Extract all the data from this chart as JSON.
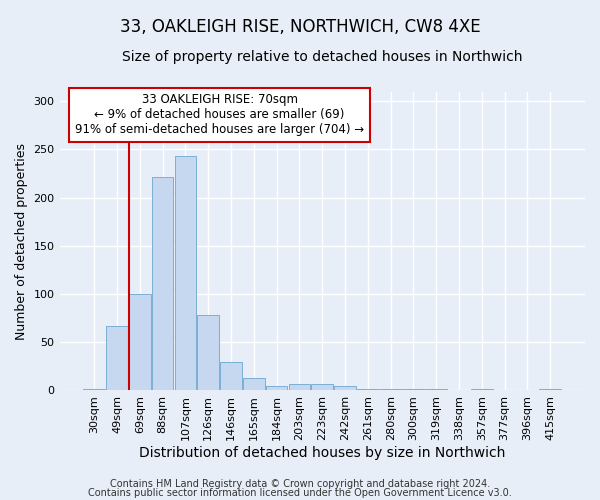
{
  "title": "33, OAKLEIGH RISE, NORTHWICH, CW8 4XE",
  "subtitle": "Size of property relative to detached houses in Northwich",
  "xlabel": "Distribution of detached houses by size in Northwich",
  "ylabel": "Number of detached properties",
  "bar_labels": [
    "30sqm",
    "49sqm",
    "69sqm",
    "88sqm",
    "107sqm",
    "126sqm",
    "146sqm",
    "165sqm",
    "184sqm",
    "203sqm",
    "223sqm",
    "242sqm",
    "261sqm",
    "280sqm",
    "300sqm",
    "319sqm",
    "338sqm",
    "357sqm",
    "377sqm",
    "396sqm",
    "415sqm"
  ],
  "bar_values": [
    2,
    67,
    100,
    221,
    243,
    78,
    30,
    13,
    5,
    7,
    7,
    5,
    2,
    2,
    2,
    2,
    0,
    2,
    0,
    0,
    1
  ],
  "bar_color": "#c5d8f0",
  "bar_edge_color": "#7bafd4",
  "vline_color": "#cc0000",
  "vline_x_index": 2,
  "ylim": [
    0,
    310
  ],
  "annotation_text": "33 OAKLEIGH RISE: 70sqm\n← 9% of detached houses are smaller (69)\n91% of semi-detached houses are larger (704) →",
  "annotation_box_color": "#ffffff",
  "annotation_box_edge": "#cc0000",
  "footer1": "Contains HM Land Registry data © Crown copyright and database right 2024.",
  "footer2": "Contains public sector information licensed under the Open Government Licence v3.0.",
  "bg_color": "#e8eef8",
  "grid_color": "#ffffff",
  "title_fontsize": 12,
  "subtitle_fontsize": 10,
  "xlabel_fontsize": 10,
  "ylabel_fontsize": 9,
  "tick_fontsize": 8,
  "annotation_fontsize": 8.5,
  "footer_fontsize": 7
}
